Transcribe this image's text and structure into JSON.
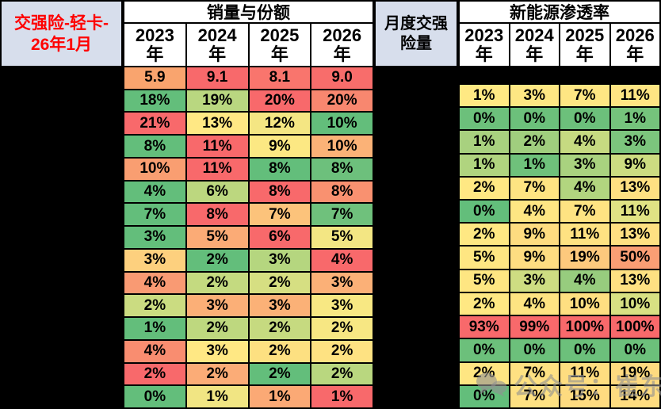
{
  "title": {
    "line1": "交强险-轻卡-",
    "line2": "26年1月"
  },
  "header": {
    "sales_group": "销量与份额",
    "middle": "月度交强险量",
    "nev_group": "新能源渗透率",
    "years": [
      "2023",
      "2024",
      "2025",
      "2026"
    ],
    "year_suffix": "年"
  },
  "chart_data": [
    {
      "type": "table",
      "name": "销量与份额",
      "columns": [
        "2023年",
        "2024年",
        "2025年",
        "2026年"
      ],
      "rows": [
        {
          "v": [
            "5.9",
            "9.1",
            "8.1",
            "9.0"
          ],
          "c": [
            "#F9A46E",
            "#F8696B",
            "#F9756D",
            "#F86D6B"
          ]
        },
        {
          "v": [
            "18%",
            "19%",
            "20%",
            "20%"
          ],
          "c": [
            "#63BE7B",
            "#B9D780",
            "#F8696B",
            "#F8876F"
          ]
        },
        {
          "v": [
            "21%",
            "13%",
            "12%",
            "10%"
          ],
          "c": [
            "#F8696B",
            "#FFE884",
            "#F4E683",
            "#63BE7B"
          ]
        },
        {
          "v": [
            "8%",
            "11%",
            "9%",
            "10%"
          ],
          "c": [
            "#63BE7B",
            "#F8696B",
            "#FCE883",
            "#FBB277"
          ]
        },
        {
          "v": [
            "10%",
            "11%",
            "8%",
            "8%"
          ],
          "c": [
            "#F99E71",
            "#F8696B",
            "#63BE7B",
            "#6DC07C"
          ]
        },
        {
          "v": [
            "4%",
            "6%",
            "8%",
            "8%"
          ],
          "c": [
            "#63BE7B",
            "#BCD77F",
            "#F8696B",
            "#F99170"
          ]
        },
        {
          "v": [
            "7%",
            "8%",
            "7%",
            "7%"
          ],
          "c": [
            "#63BE7B",
            "#F8696B",
            "#FCC37B",
            "#6FC17C"
          ]
        },
        {
          "v": [
            "3%",
            "5%",
            "6%",
            "5%"
          ],
          "c": [
            "#63BE7B",
            "#FBAB76",
            "#F8696B",
            "#F3E683"
          ]
        },
        {
          "v": [
            "3%",
            "2%",
            "3%",
            "4%"
          ],
          "c": [
            "#FDD07E",
            "#63BE7B",
            "#B5D67F",
            "#F8696B"
          ]
        },
        {
          "v": [
            "4%",
            "2%",
            "2%",
            "3%"
          ],
          "c": [
            "#F99A73",
            "#C4DA80",
            "#D6DF82",
            "#FBB077"
          ]
        },
        {
          "v": [
            "2%",
            "3%",
            "3%",
            "3%"
          ],
          "c": [
            "#CBDC81",
            "#FBAF77",
            "#FBB177",
            "#F8E883"
          ]
        },
        {
          "v": [
            "1%",
            "2%",
            "2%",
            "2%"
          ],
          "c": [
            "#63BE7B",
            "#BED87F",
            "#C6DA80",
            "#F7E783"
          ]
        },
        {
          "v": [
            "4%",
            "3%",
            "2%",
            "2%"
          ],
          "c": [
            "#F98D70",
            "#FFE884",
            "#FDE081",
            "#FEE282"
          ]
        },
        {
          "v": [
            "2%",
            "2%",
            "2%",
            "2%"
          ],
          "c": [
            "#F8696B",
            "#FBAC77",
            "#63BE7B",
            "#B9D77F"
          ]
        },
        {
          "v": [
            "0%",
            "1%",
            "1%",
            "1%"
          ],
          "c": [
            "#63BE7B",
            "#F1E583",
            "#FBA975",
            "#F8696B"
          ]
        }
      ]
    },
    {
      "type": "table",
      "name": "新能源渗透率",
      "columns": [
        "2023年",
        "2024年",
        "2025年",
        "2026年"
      ],
      "rows": [
        {
          "v": [
            "1%",
            "3%",
            "7%",
            "11%"
          ],
          "c": [
            "#FFE983",
            "#FEE783",
            "#FEE683",
            "#FEE583"
          ]
        },
        {
          "v": [
            "0%",
            "0%",
            "0%",
            "1%"
          ],
          "c": [
            "#6CC07B",
            "#6CC07B",
            "#6CC07B",
            "#75C37C"
          ]
        },
        {
          "v": [
            "1%",
            "2%",
            "4%",
            "3%"
          ],
          "c": [
            "#A8D17F",
            "#A0CE7E",
            "#C6DA81",
            "#7CC57D"
          ]
        },
        {
          "v": [
            "1%",
            "1%",
            "3%",
            "9%"
          ],
          "c": [
            "#B0D47F",
            "#6FC17B",
            "#A9D27F",
            "#CDDC81"
          ]
        },
        {
          "v": [
            "2%",
            "7%",
            "4%",
            "13%"
          ],
          "c": [
            "#FFE883",
            "#FEE482",
            "#B2D57F",
            "#FEE082"
          ]
        },
        {
          "v": [
            "0%",
            "4%",
            "7%",
            "11%"
          ],
          "c": [
            "#63BE7B",
            "#FEE683",
            "#FEE382",
            "#E0E284"
          ]
        },
        {
          "v": [
            "2%",
            "9%",
            "11%",
            "13%"
          ],
          "c": [
            "#FFE883",
            "#FEDC80",
            "#FEE282",
            "#FEE082"
          ]
        },
        {
          "v": [
            "5%",
            "9%",
            "19%",
            "50%"
          ],
          "c": [
            "#FEE682",
            "#FEDD81",
            "#FDC97D",
            "#FA9E74"
          ]
        },
        {
          "v": [
            "5%",
            "3%",
            "4%",
            "13%"
          ],
          "c": [
            "#FEE682",
            "#CEDD82",
            "#97CC7E",
            "#FEE082"
          ]
        },
        {
          "v": [
            "2%",
            "4%",
            "10%",
            "10%"
          ],
          "c": [
            "#FFE883",
            "#FEE482",
            "#FEDF81",
            "#D8E083"
          ]
        },
        {
          "v": [
            "93%",
            "99%",
            "100%",
            "100%"
          ],
          "c": [
            "#F8696B",
            "#F8696B",
            "#F8696B",
            "#F8696B"
          ]
        },
        {
          "v": [
            "0%",
            "0%",
            "0%",
            "0%"
          ],
          "c": [
            "#6CC07B",
            "#6CC07B",
            "#6CC07B",
            "#6CC07B"
          ]
        },
        {
          "v": [
            "2%",
            "7%",
            "11%",
            "19%"
          ],
          "c": [
            "#FEE682",
            "#FEE182",
            "#FEDD80",
            "#FEDA80"
          ]
        },
        {
          "v": [
            "0%",
            "7%",
            "15%",
            "14%"
          ],
          "c": [
            "#63BE7B",
            "#FEE182",
            "#FEDB80",
            "#FEDC80"
          ]
        }
      ]
    }
  ],
  "watermark": {
    "text": "公众号：崔东树"
  },
  "colors": {
    "title_text": "#FF0000",
    "header_bg": "#D7DEEC",
    "header_cell_bg": "#FFFFFF",
    "panel_bg": "#000000",
    "cell_text": "#000000",
    "watermark": "#919191",
    "scale_red": "#F8696B",
    "scale_yellow": "#FFE884",
    "scale_green": "#63BE7B"
  }
}
